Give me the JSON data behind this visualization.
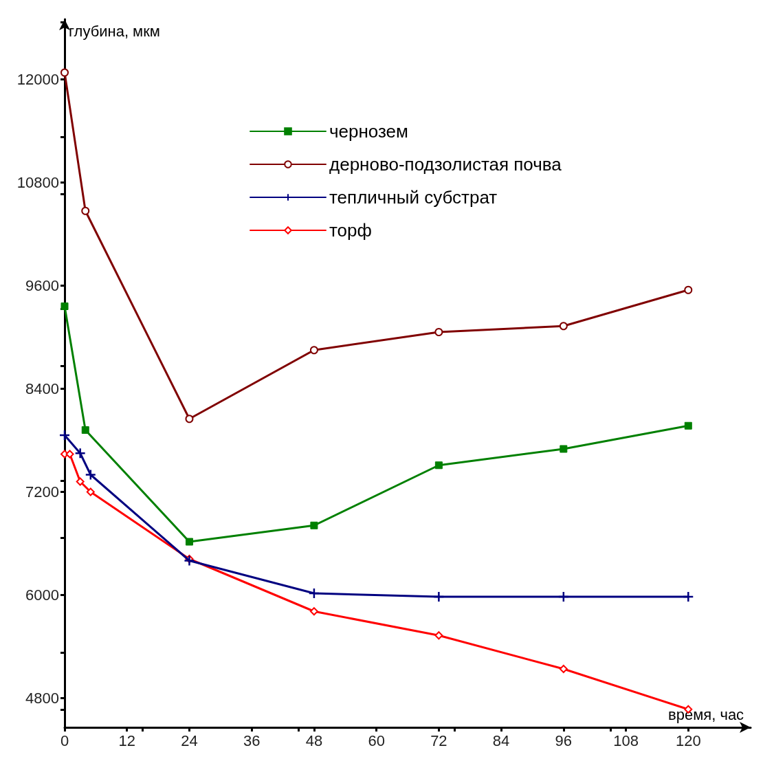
{
  "chart_data": {
    "type": "line",
    "xlabel": "время, час",
    "ylabel": "глубина, мкм",
    "xlim": [
      0,
      132
    ],
    "ylim": [
      4460,
      12700
    ],
    "xticks": [
      0,
      12,
      24,
      36,
      48,
      60,
      72,
      84,
      96,
      108,
      120
    ],
    "yticks": [
      4800,
      6000,
      7200,
      8400,
      9600,
      10800,
      12000
    ],
    "grid": false,
    "legend": "top",
    "series": [
      {
        "name": "чернозем",
        "color": "#008000",
        "marker": "square",
        "x": [
          0,
          4,
          24,
          48,
          72,
          96,
          120
        ],
        "values": [
          9360,
          7920,
          6620,
          6810,
          7510,
          7700,
          7970
        ]
      },
      {
        "name": "дерново-подзолистая почва",
        "color": "#800000",
        "marker": "circle",
        "x": [
          0,
          4,
          24,
          48,
          72,
          96,
          120
        ],
        "values": [
          12080,
          10470,
          8050,
          8850,
          9060,
          9130,
          9550
        ]
      },
      {
        "name": "тепличный субстрат",
        "color": "#000080",
        "marker": "cross",
        "x": [
          0,
          3,
          5,
          24,
          48,
          72,
          96,
          120
        ],
        "values": [
          7860,
          7650,
          7400,
          6400,
          6020,
          5980,
          5980,
          5980
        ]
      },
      {
        "name": "торф",
        "color": "#ff0000",
        "marker": "diamond",
        "x": [
          0,
          1,
          3,
          5,
          24,
          48,
          72,
          96,
          120
        ],
        "values": [
          7640,
          7640,
          7320,
          7200,
          6420,
          5810,
          5530,
          5140,
          4670
        ]
      }
    ]
  }
}
